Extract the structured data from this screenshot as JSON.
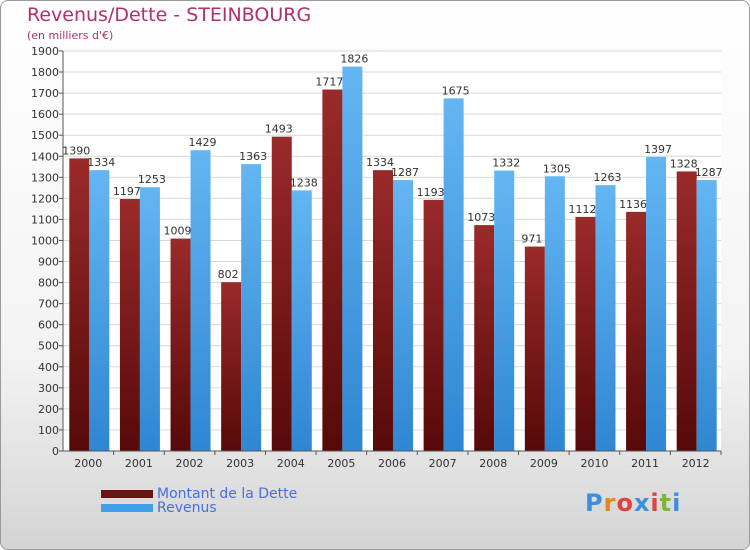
{
  "chart_data": {
    "type": "bar",
    "title": "Revenus/Dette - STEINBOURG",
    "subtitle": "(en milliers d'€)",
    "categories": [
      "2000",
      "2001",
      "2002",
      "2003",
      "2004",
      "2005",
      "2006",
      "2007",
      "2008",
      "2009",
      "2010",
      "2011",
      "2012"
    ],
    "series": [
      {
        "name": "Montant de la Dette",
        "color": "#7a1d1d",
        "values": [
          1390,
          1197,
          1009,
          802,
          1493,
          1717,
          1334,
          1193,
          1073,
          971,
          1112,
          1136,
          1328
        ],
        "labels": [
          "1390",
          "1197",
          "1009",
          "802",
          "1493",
          "1717",
          "1334",
          "1193",
          "1073",
          "971",
          "1112",
          "1136",
          "1328"
        ]
      },
      {
        "name": "Revenus",
        "color": "#3f9fe6",
        "values": [
          1334,
          1253,
          1429,
          1363,
          1238,
          1826,
          1287,
          1675,
          1332,
          1305,
          1263,
          1397,
          1287
        ],
        "labels": [
          "1334",
          "1253",
          "1429",
          "1363",
          "1238",
          "1826",
          "1287",
          "1675",
          "1332",
          "1305",
          "1263",
          "1397",
          "1287"
        ]
      }
    ],
    "ylim": [
      0,
      1900
    ],
    "yticks": [
      "0",
      "100",
      "200",
      "300",
      "400",
      "500",
      "600",
      "700",
      "800",
      "900",
      "1000",
      "1100",
      "1200",
      "1300",
      "1400",
      "1500",
      "1600",
      "1700",
      "1800",
      "1900"
    ],
    "grid": true,
    "legend_position": "bottom-left"
  },
  "logo": {
    "letters": [
      "P",
      "r",
      "o",
      "x",
      "i",
      "t",
      "i"
    ],
    "colors": [
      "#3a8fe0",
      "#e8851f",
      "#e04040",
      "#3a8fe0",
      "#e04040",
      "#7cb836",
      "#3a8fe0"
    ]
  }
}
